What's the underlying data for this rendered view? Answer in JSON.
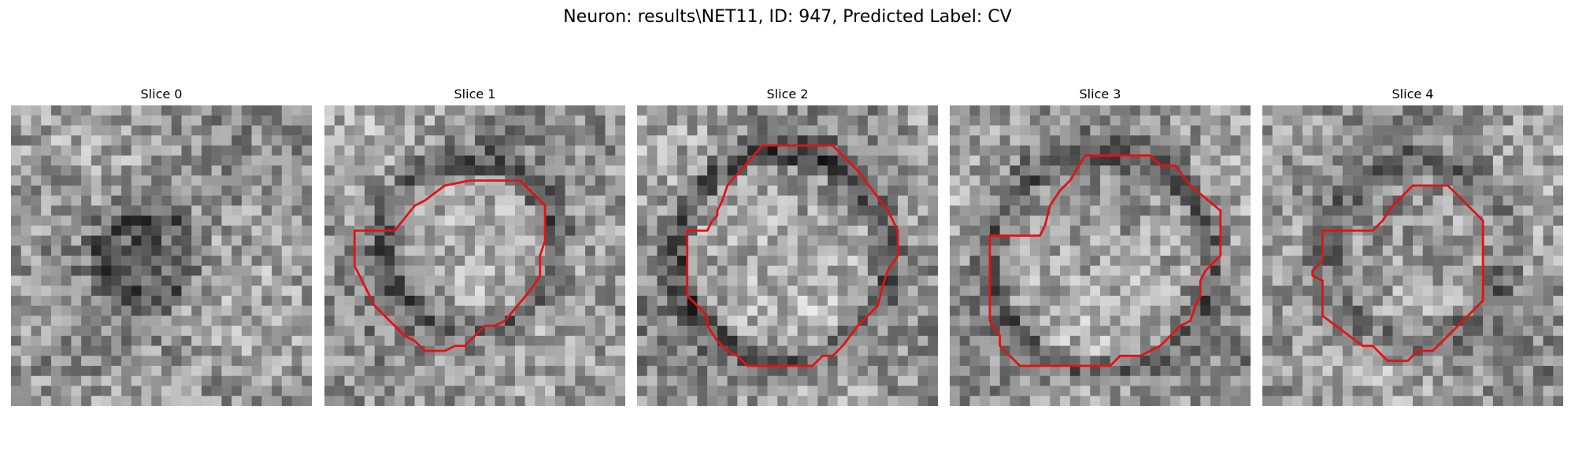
{
  "figure": {
    "title": "Neuron: results\\NET11, ID: 947, Predicted Label: CV"
  },
  "colors": {
    "contour": "#e01414",
    "background": "#ffffff"
  },
  "slices": [
    {
      "title": "Slice 0",
      "has_contour": false
    },
    {
      "title": "Slice 1",
      "has_contour": true
    },
    {
      "title": "Slice 2",
      "has_contour": true
    },
    {
      "title": "Slice 3",
      "has_contour": true
    },
    {
      "title": "Slice 4",
      "has_contour": true
    }
  ]
}
